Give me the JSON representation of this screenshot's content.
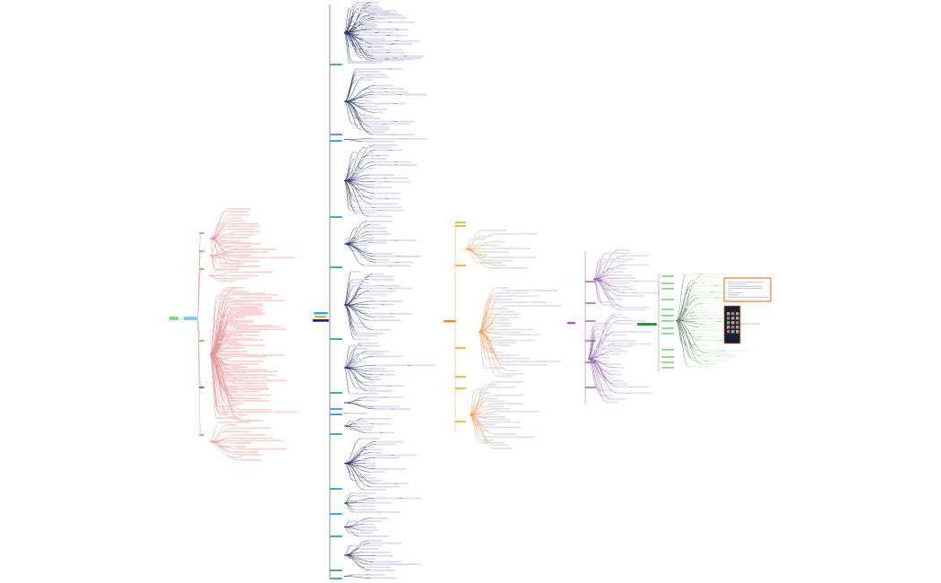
{
  "diagram": {
    "type": "mind-map",
    "clusters": [
      {
        "id": "left",
        "root_color": "#7ed87e",
        "hub_color": "#7fd0f0",
        "branch_color": "#3d7fc0",
        "leaf_color": "#f7d4d4",
        "line_color": "#e59a9a"
      },
      {
        "id": "center",
        "root_colors": [
          "#2aa7e8",
          "#f5a623",
          "#1f2a5a"
        ],
        "branch_color": "#4aa3df",
        "leaf_color": "#dcdcec",
        "line_color": "#2a3a6a"
      },
      {
        "id": "middle",
        "root_color": "#f08a24",
        "branch_color": "#f5b942",
        "leaf_color": "#e0e0ee",
        "line_color": "#f0a060"
      },
      {
        "id": "right-middle",
        "root_color": "#b34bb8",
        "branch_color": "#c77fd0",
        "leaf_color": "#e6e0f0",
        "line_color": "#9a60b0"
      },
      {
        "id": "far-right",
        "root_color": "#1a9a3a",
        "branch_color": "#7fd87f",
        "leaf_color": "#e8f7e8",
        "line_color": "#6a8a6a",
        "image_frame_color": "#f07a30",
        "phone_bg": "#162030"
      }
    ]
  }
}
